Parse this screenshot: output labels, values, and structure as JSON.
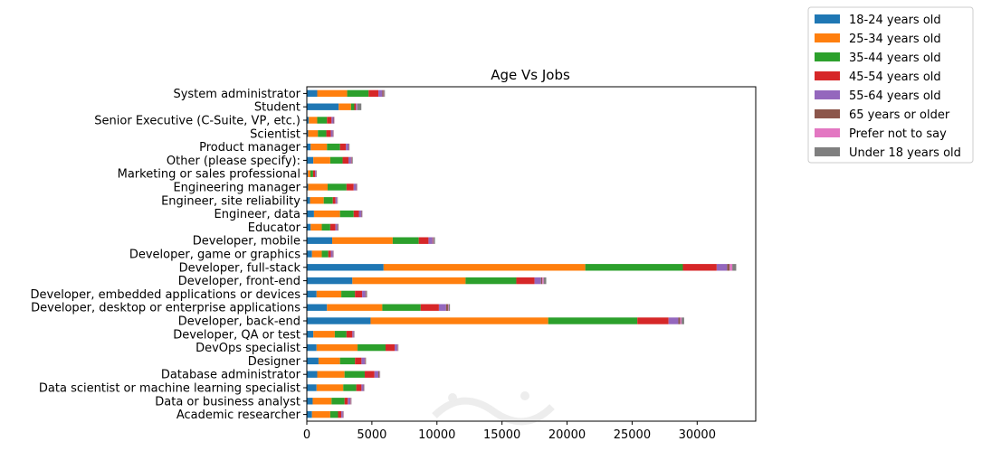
{
  "chart_data": {
    "type": "bar",
    "orientation": "horizontal",
    "stacked": true,
    "title": "Age Vs Jobs",
    "xlabel": "",
    "ylabel": "",
    "xlim": [
      0,
      34500
    ],
    "xticks": [
      0,
      5000,
      10000,
      15000,
      20000,
      25000,
      30000
    ],
    "xtick_labels": [
      "0",
      "5000",
      "10000",
      "15000",
      "20000",
      "25000",
      "30000"
    ],
    "grid": false,
    "legend_position": "outside-top-right",
    "categories": [
      "Academic researcher",
      "Data or business analyst",
      "Data scientist or machine learning specialist",
      "Database administrator",
      "Designer",
      "DevOps specialist",
      "Developer, QA or test",
      "Developer, back-end",
      "Developer, desktop or enterprise applications",
      "Developer, embedded applications or devices",
      "Developer, front-end",
      "Developer, full-stack",
      "Developer, game or graphics",
      "Developer, mobile",
      "Educator",
      "Engineer, data",
      "Engineer, site reliability",
      "Engineering manager",
      "Marketing or sales professional",
      "Other (please specify):",
      "Product manager",
      "Scientist",
      "Senior Executive (C-Suite, VP, etc.)",
      "Student",
      "System administrator"
    ],
    "series": [
      {
        "name": "18-24 years old",
        "color": "#1f77b4",
        "values": [
          400,
          450,
          750,
          800,
          900,
          750,
          500,
          4900,
          1550,
          750,
          3500,
          5900,
          400,
          1950,
          300,
          550,
          250,
          100,
          80,
          500,
          300,
          100,
          150,
          2450,
          800
        ]
      },
      {
        "name": "25-34 years old",
        "color": "#ff7f0e",
        "values": [
          1400,
          1450,
          2050,
          2100,
          1650,
          3150,
          1650,
          13650,
          4250,
          1900,
          8700,
          15500,
          750,
          4650,
          850,
          2000,
          1050,
          1500,
          200,
          1300,
          1250,
          750,
          650,
          950,
          2300
        ]
      },
      {
        "name": "35-44 years old",
        "color": "#2ca02c",
        "values": [
          600,
          1000,
          1000,
          1550,
          1150,
          2150,
          900,
          6850,
          2950,
          1050,
          3900,
          7500,
          500,
          2000,
          650,
          1050,
          700,
          1450,
          200,
          950,
          1000,
          650,
          750,
          250,
          1650
        ]
      },
      {
        "name": "45-54 years old",
        "color": "#d62728",
        "values": [
          250,
          250,
          400,
          750,
          500,
          700,
          450,
          2400,
          1400,
          550,
          1400,
          2600,
          200,
          750,
          400,
          400,
          200,
          550,
          150,
          450,
          450,
          350,
          350,
          120,
          750
        ]
      },
      {
        "name": "55-64 years old",
        "color": "#9467bd",
        "values": [
          120,
          200,
          150,
          300,
          250,
          200,
          100,
          750,
          550,
          250,
          500,
          800,
          150,
          300,
          150,
          200,
          120,
          200,
          80,
          200,
          200,
          150,
          150,
          80,
          300
        ]
      },
      {
        "name": "65 years or older",
        "color": "#8c564b",
        "values": [
          30,
          40,
          30,
          80,
          50,
          30,
          20,
          150,
          150,
          60,
          100,
          200,
          30,
          50,
          50,
          40,
          20,
          40,
          20,
          50,
          40,
          40,
          50,
          20,
          100
        ]
      },
      {
        "name": "Prefer not to say",
        "color": "#e377c2",
        "values": [
          20,
          30,
          20,
          30,
          20,
          30,
          20,
          100,
          50,
          20,
          100,
          200,
          20,
          50,
          20,
          20,
          20,
          30,
          10,
          30,
          20,
          20,
          20,
          20,
          30
        ]
      },
      {
        "name": "Under 18 years old",
        "color": "#7f7f7f",
        "values": [
          20,
          20,
          30,
          30,
          30,
          30,
          30,
          200,
          100,
          50,
          200,
          300,
          20,
          100,
          20,
          20,
          20,
          20,
          30,
          50,
          20,
          10,
          10,
          300,
          70
        ]
      }
    ]
  }
}
